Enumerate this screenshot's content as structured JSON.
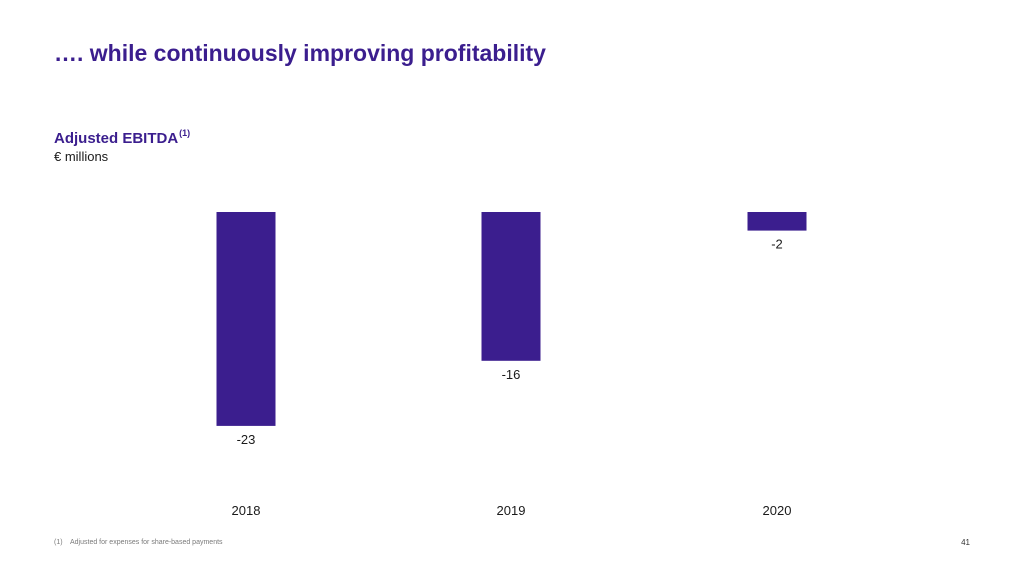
{
  "slide": {
    "title": "…. while continuously improving profitability",
    "page_number": "41"
  },
  "chart_header": {
    "title": "Adjusted EBITDA",
    "footnote_ref": "(1)",
    "unit": "€ millions"
  },
  "footnote": {
    "marker": "(1)",
    "text": "Adjusted for expenses for share-based payments"
  },
  "colors": {
    "bar": "#3b1e8e",
    "accent": "#3b1e8e"
  },
  "chart_data": {
    "type": "bar",
    "title": "Adjusted EBITDA",
    "unit": "€ millions",
    "categories": [
      "2018",
      "2019",
      "2020"
    ],
    "values": [
      -23,
      -16,
      -2
    ],
    "data_labels": [
      "-23",
      "-16",
      "-2"
    ],
    "ylim": [
      -23,
      0
    ],
    "xlabel": "",
    "ylabel": "",
    "grid": false,
    "legend": false
  }
}
